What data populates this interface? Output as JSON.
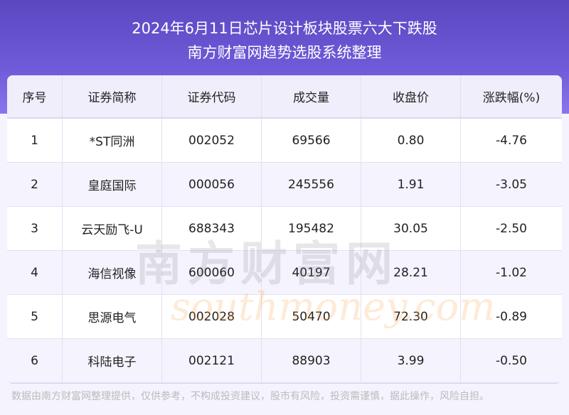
{
  "header": {
    "title": "2024年6月11日芯片设计板块股票六大下跌股",
    "subtitle": "南方财富网趋势选股系统整理"
  },
  "table": {
    "columns": [
      "序号",
      "证券简称",
      "证券代码",
      "成交量",
      "收盘价",
      "涨跌幅(%)"
    ],
    "rows": [
      [
        "1",
        "*ST同洲",
        "002052",
        "69566",
        "0.80",
        "-4.76"
      ],
      [
        "2",
        "皇庭国际",
        "000056",
        "245556",
        "1.91",
        "-3.05"
      ],
      [
        "3",
        "云天励飞-U",
        "688343",
        "195482",
        "30.05",
        "-2.50"
      ],
      [
        "4",
        "海信视像",
        "600060",
        "40197",
        "28.21",
        "-1.02"
      ],
      [
        "5",
        "思源电气",
        "002028",
        "50470",
        "72.30",
        "-0.89"
      ],
      [
        "6",
        "科陆电子",
        "002121",
        "88903",
        "3.99",
        "-0.50"
      ]
    ]
  },
  "watermark": {
    "cn": "南方财富网",
    "en": "southmoney.com"
  },
  "footer": {
    "disclaimer": "数据由南方财富网整理提供，仅供参考，不构成投资建议，股市有风险，投资需谨慎，据此操作，风险自担。"
  }
}
